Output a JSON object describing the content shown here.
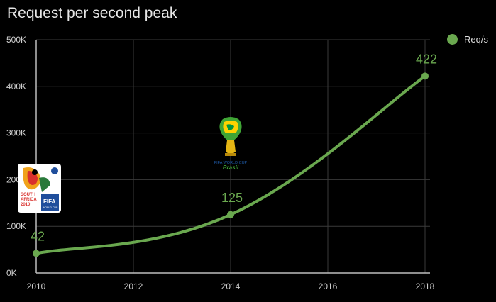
{
  "chart_data": {
    "type": "line",
    "title": "Request per second peak",
    "xlabel": "",
    "ylabel": "",
    "x_ticks": [
      "2010",
      "2012",
      "2014",
      "2016",
      "2018"
    ],
    "y_ticks": [
      "0K",
      "100K",
      "200K",
      "300K",
      "400K",
      "500K"
    ],
    "xlim": [
      2010,
      2018
    ],
    "ylim": [
      0,
      500
    ],
    "series": [
      {
        "name": "Req/s",
        "color": "#6aa84f",
        "points": [
          {
            "x": 2010,
            "y": 42,
            "label": "42"
          },
          {
            "x": 2014,
            "y": 125,
            "label": "125"
          },
          {
            "x": 2018,
            "y": 422,
            "label": "422"
          }
        ]
      }
    ],
    "grid": true,
    "legend_position": "top-right",
    "annotations": [
      {
        "kind": "logo",
        "name": "south-africa-2010-world-cup-logo",
        "at_x": 2010
      },
      {
        "kind": "logo",
        "name": "brasil-2014-world-cup-logo",
        "at_x": 2014
      }
    ]
  },
  "logos": {
    "south_africa": {
      "line1": "SOUTH",
      "line2": "AFRICA",
      "line3": "2010",
      "brand": "FIFA",
      "sub": "WORLD CUP"
    },
    "brasil": {
      "line1": "FIFA WORLD CUP",
      "line2": "Brasil"
    }
  },
  "colors": {
    "background": "#000000",
    "series": "#6aa84f",
    "grid": "#3a3a3a",
    "axis": "#bdbdbd",
    "text": "#cfcfcf"
  }
}
